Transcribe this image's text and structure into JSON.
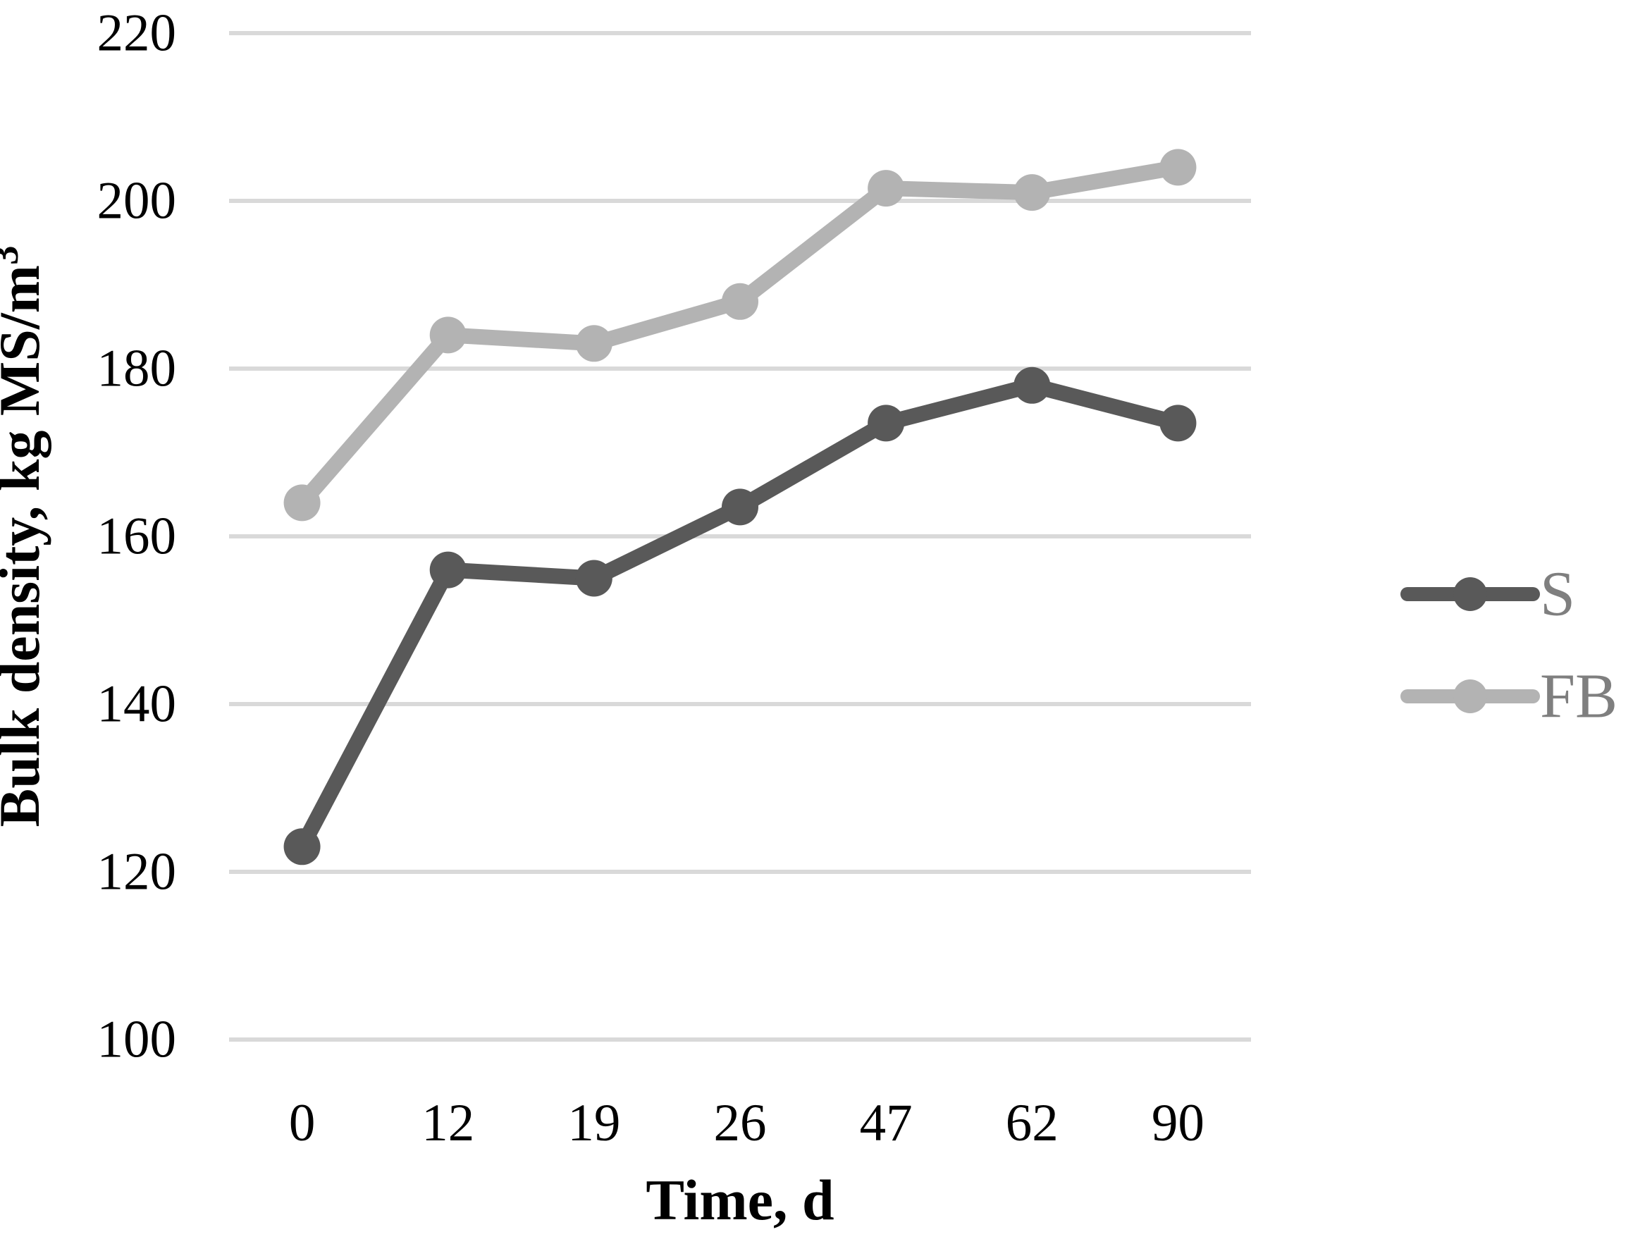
{
  "chart_data": {
    "type": "line",
    "title": "",
    "xlabel": "Time, d",
    "ylabel": "Bulk density, kg MS/m³",
    "ylabel_main": "Bulk density, kg MS/m",
    "ylabel_superscript": "3",
    "categories": [
      "0",
      "12",
      "19",
      "26",
      "47",
      "62",
      "90"
    ],
    "series": [
      {
        "name": "S",
        "color": "#595959",
        "values": [
          123,
          156,
          155,
          163.5,
          173.5,
          178,
          173.5
        ]
      },
      {
        "name": "FB",
        "color": "#b3b3b3",
        "values": [
          164,
          184,
          183,
          188,
          201.5,
          201,
          204
        ]
      }
    ],
    "ylim": [
      100,
      220
    ],
    "yticks": [
      220,
      200,
      180,
      160,
      140,
      120,
      100
    ],
    "grid": "horizontal",
    "gridline_color": "#d9d9d9",
    "tick_label_color": "#000000",
    "legend_position": "right",
    "legend_text_color": "#7f7f7f",
    "background_color": "#ffffff"
  }
}
